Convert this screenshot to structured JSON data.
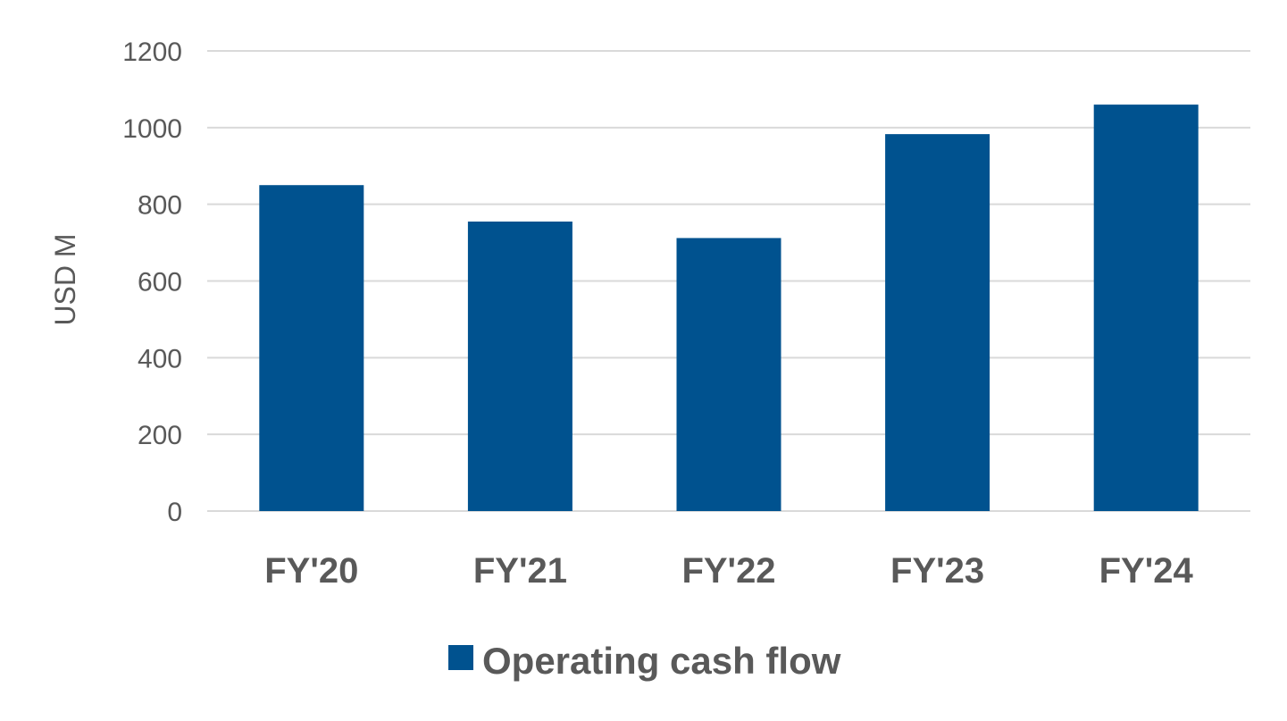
{
  "chart_data": {
    "type": "bar",
    "title": "",
    "xlabel": "",
    "ylabel": "USD M",
    "ylim": [
      0,
      1200
    ],
    "yticks": [
      0,
      200,
      400,
      600,
      800,
      1000,
      1200
    ],
    "categories": [
      "FY'20",
      "FY'21",
      "FY'22",
      "FY'23",
      "FY'24"
    ],
    "series": [
      {
        "name": "Operating cash flow",
        "values": [
          850,
          755,
          712,
          983,
          1060
        ],
        "color": "#00528f"
      }
    ],
    "grid": true,
    "legend_position": "bottom"
  }
}
